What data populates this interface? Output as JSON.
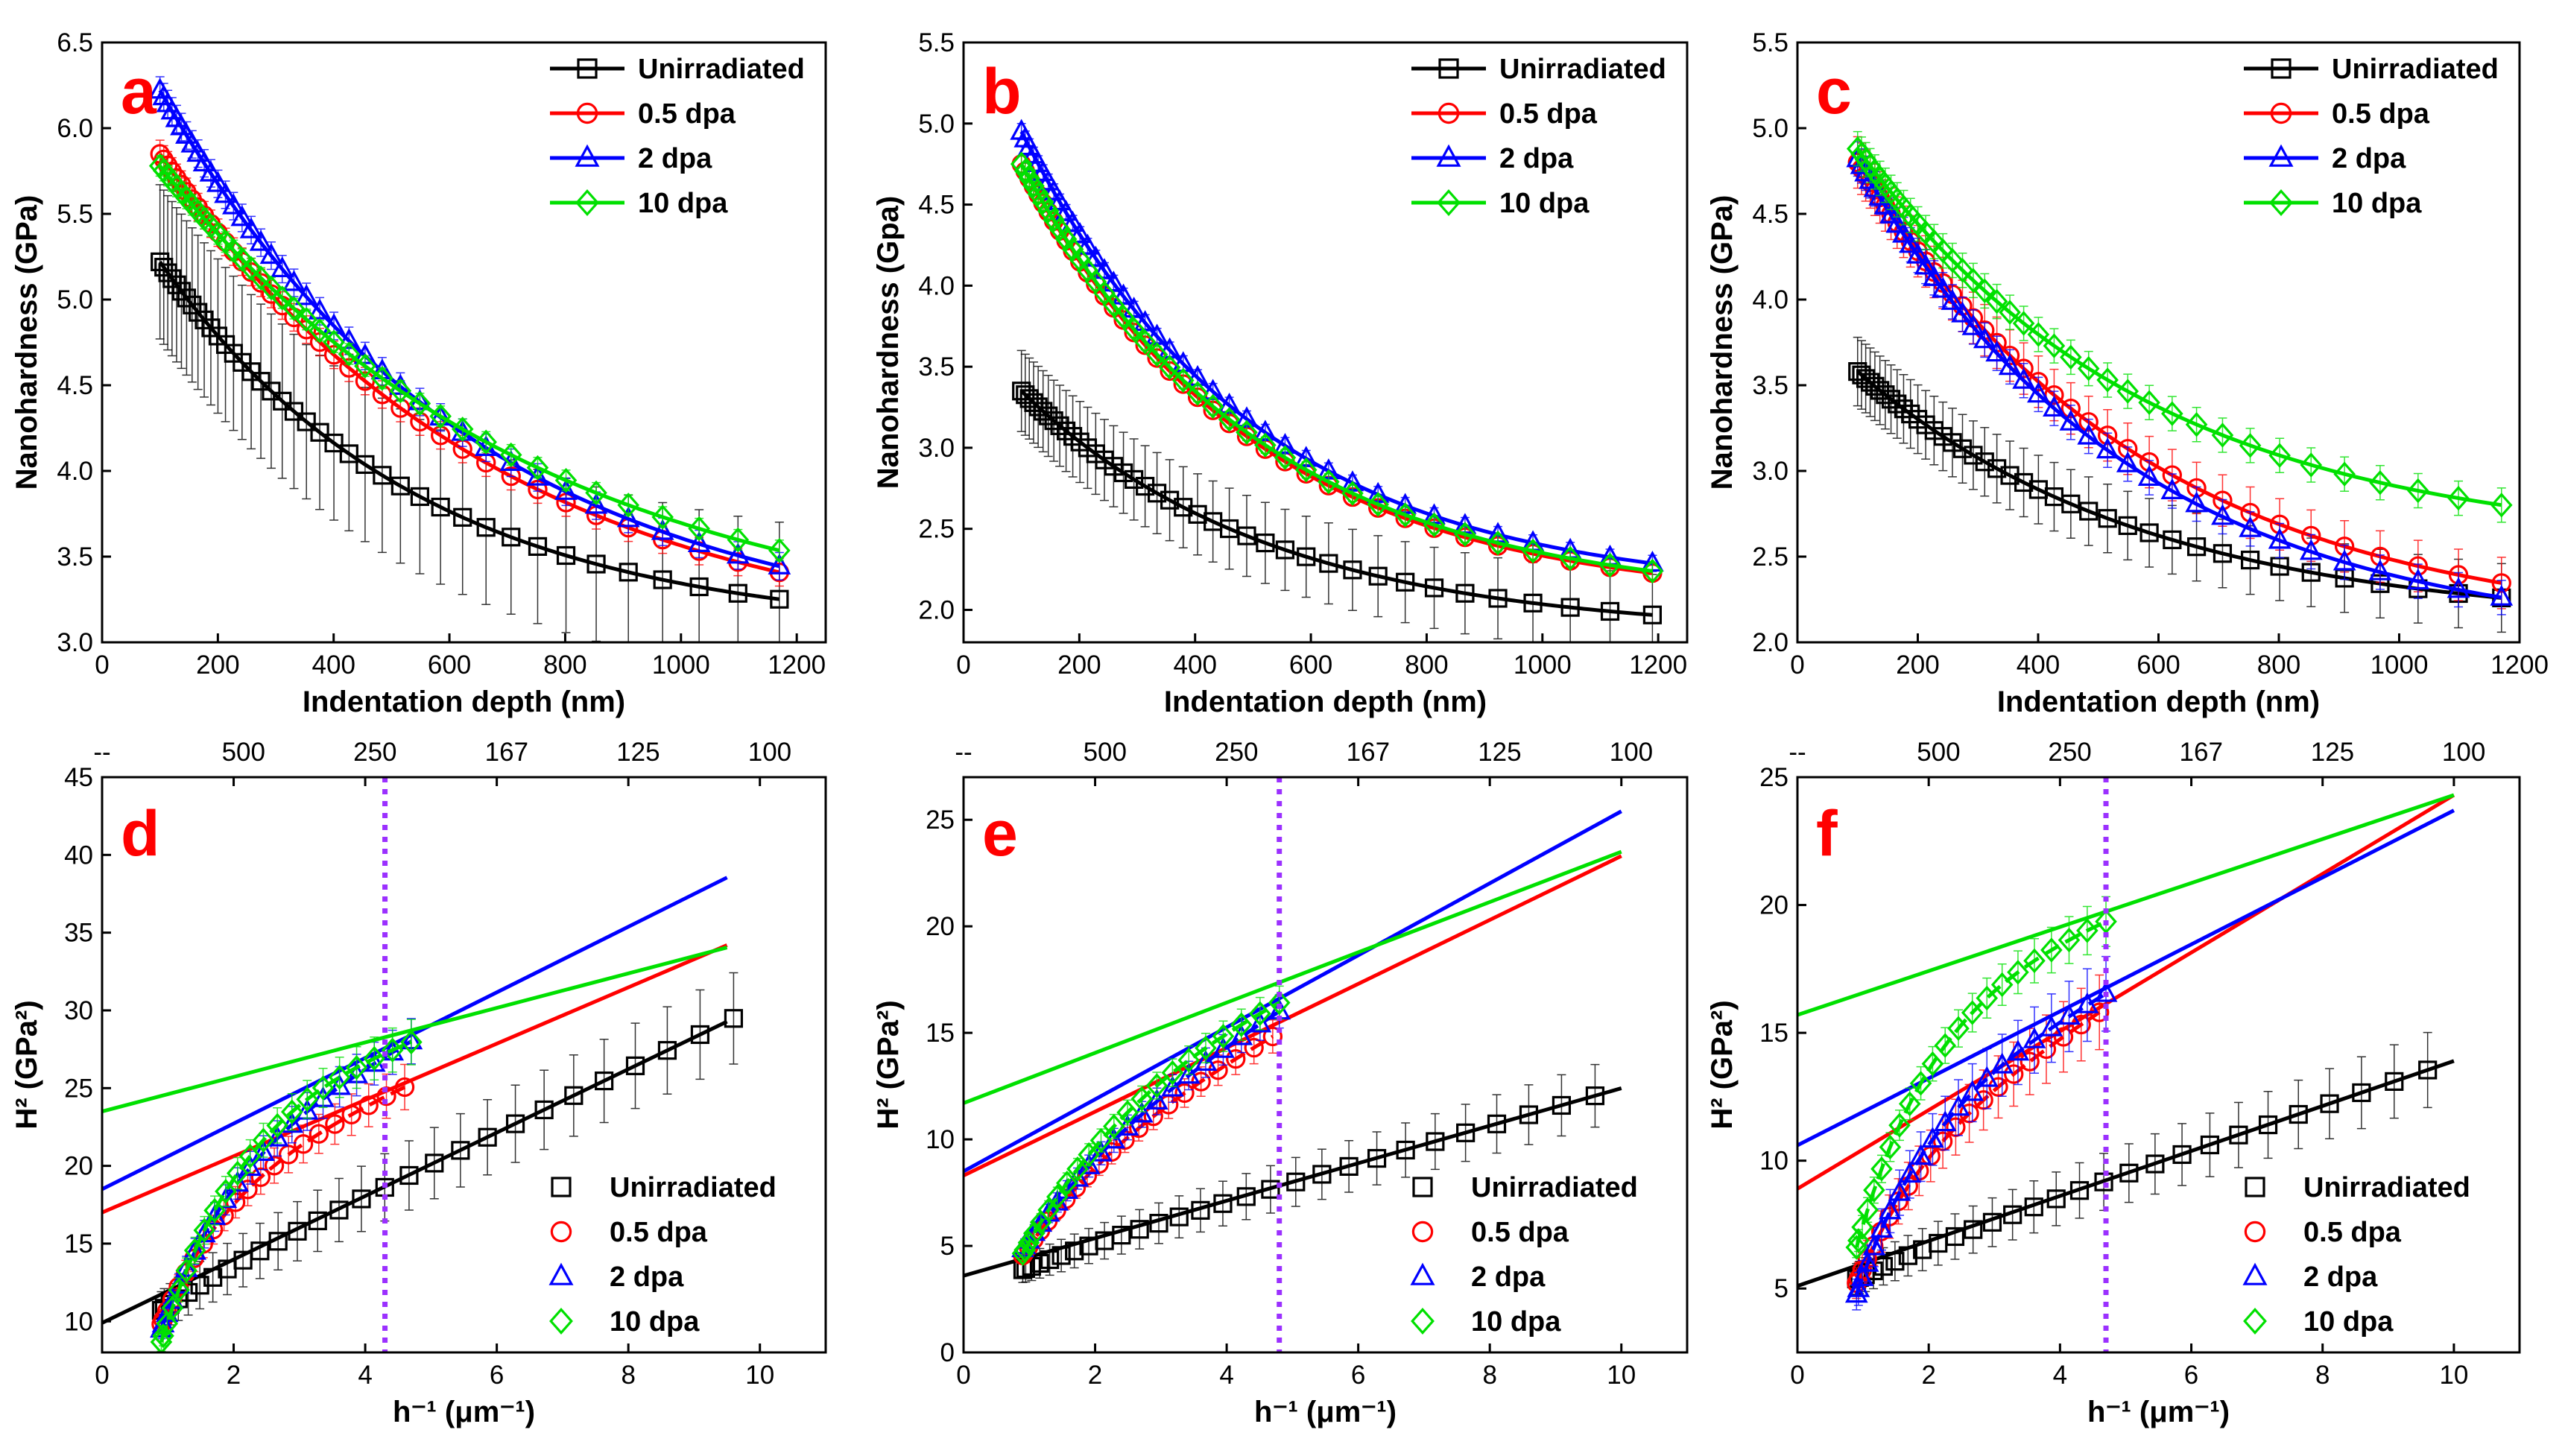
{
  "chart_data": [
    {
      "id": "a",
      "type": "line",
      "panel_label": "a",
      "xlabel": "Indentation depth (nm)",
      "ylabel": "Nanohardness (GPa)",
      "xlim": [
        0,
        1250
      ],
      "ylim": [
        3.0,
        6.5
      ],
      "xticks": [
        {
          "v": 0,
          "t": "0"
        },
        {
          "v": 200,
          "t": "200"
        },
        {
          "v": 400,
          "t": "400"
        },
        {
          "v": 600,
          "t": "600"
        },
        {
          "v": 800,
          "t": "800"
        },
        {
          "v": 1000,
          "t": "1000"
        },
        {
          "v": 1200,
          "t": "1200"
        }
      ],
      "yticks": [
        {
          "v": 3.0,
          "t": "3.0"
        },
        {
          "v": 3.5,
          "t": "3.5"
        },
        {
          "v": 4.0,
          "t": "4.0"
        },
        {
          "v": 4.5,
          "t": "4.5"
        },
        {
          "v": 5.0,
          "t": "5.0"
        },
        {
          "v": 5.5,
          "t": "5.5"
        },
        {
          "v": 6.0,
          "t": "6.0"
        },
        {
          "v": 6.5,
          "t": "6.5"
        }
      ],
      "legend": "top-right",
      "series": [
        {
          "name": "Unirradiated",
          "color": "#000000",
          "marker": "square",
          "h0": 5.22,
          "hinf": 3.05,
          "hs": 450,
          "d0": 100,
          "d1": 1170,
          "err": 0.45
        },
        {
          "name": "0.5 dpa",
          "color": "#ff0000",
          "marker": "circle",
          "h0": 5.85,
          "hinf": 2.95,
          "hs": 580,
          "d0": 100,
          "d1": 1170,
          "err": 0.08
        },
        {
          "name": "2 dpa",
          "color": "#0000ff",
          "marker": "triangle",
          "h0": 6.22,
          "hinf": 3.0,
          "hs": 540,
          "d0": 100,
          "d1": 1170,
          "err": 0.08
        },
        {
          "name": "10 dpa",
          "color": "#00e000",
          "marker": "diamond",
          "h0": 5.78,
          "hinf": 3.0,
          "hs": 650,
          "d0": 100,
          "d1": 1170,
          "err": 0.06
        }
      ]
    },
    {
      "id": "b",
      "type": "line",
      "panel_label": "b",
      "xlabel": "Indentation depth (nm)",
      "ylabel": "Nanohardness (Gpa)",
      "xlim": [
        0,
        1250
      ],
      "ylim": [
        1.8,
        5.5
      ],
      "xticks": [
        {
          "v": 0,
          "t": "0"
        },
        {
          "v": 200,
          "t": "200"
        },
        {
          "v": 400,
          "t": "400"
        },
        {
          "v": 600,
          "t": "600"
        },
        {
          "v": 800,
          "t": "800"
        },
        {
          "v": 1000,
          "t": "1000"
        },
        {
          "v": 1200,
          "t": "1200"
        }
      ],
      "yticks": [
        {
          "v": 2.0,
          "t": "2.0"
        },
        {
          "v": 2.5,
          "t": "2.5"
        },
        {
          "v": 3.0,
          "t": "3.0"
        },
        {
          "v": 3.5,
          "t": "3.5"
        },
        {
          "v": 4.0,
          "t": "4.0"
        },
        {
          "v": 4.5,
          "t": "4.5"
        },
        {
          "v": 5.0,
          "t": "5.0"
        },
        {
          "v": 5.5,
          "t": "5.5"
        }
      ],
      "legend": "top-right",
      "series": [
        {
          "name": "Unirradiated",
          "color": "#000000",
          "marker": "square",
          "h0": 3.35,
          "hinf": 1.85,
          "hs": 430,
          "d0": 100,
          "d1": 1190,
          "err": 0.25
        },
        {
          "name": "0.5 dpa",
          "color": "#ff0000",
          "marker": "circle",
          "h0": 4.75,
          "hinf": 2.05,
          "hs": 400,
          "d0": 100,
          "d1": 1190,
          "err": 0.05
        },
        {
          "name": "2 dpa",
          "color": "#0000ff",
          "marker": "triangle",
          "h0": 4.95,
          "hinf": 2.1,
          "hs": 400,
          "d0": 100,
          "d1": 1190,
          "err": 0.05
        },
        {
          "name": "10 dpa",
          "color": "#00e000",
          "marker": "diamond",
          "h0": 4.75,
          "hinf": 2.05,
          "hs": 410,
          "d0": 100,
          "d1": 1190,
          "err": 0.05
        }
      ]
    },
    {
      "id": "c",
      "type": "line",
      "panel_label": "c",
      "xlabel": "Indentation depth (nm)",
      "ylabel": "Nanohardness (GPa)",
      "xlim": [
        0,
        1200
      ],
      "ylim": [
        2.0,
        5.5
      ],
      "xticks": [
        {
          "v": 0,
          "t": "0"
        },
        {
          "v": 200,
          "t": "200"
        },
        {
          "v": 400,
          "t": "400"
        },
        {
          "v": 600,
          "t": "600"
        },
        {
          "v": 800,
          "t": "800"
        },
        {
          "v": 1000,
          "t": "1000"
        },
        {
          "v": 1200,
          "t": "1200"
        }
      ],
      "yticks": [
        {
          "v": 2.0,
          "t": "2.0"
        },
        {
          "v": 2.5,
          "t": "2.5"
        },
        {
          "v": 3.0,
          "t": "3.0"
        },
        {
          "v": 3.5,
          "t": "3.5"
        },
        {
          "v": 4.0,
          "t": "4.0"
        },
        {
          "v": 4.5,
          "t": "4.5"
        },
        {
          "v": 5.0,
          "t": "5.0"
        },
        {
          "v": 5.5,
          "t": "5.5"
        }
      ],
      "legend": "top-right",
      "series": [
        {
          "name": "Unirradiated",
          "color": "#000000",
          "marker": "square",
          "h0": 3.58,
          "hinf": 2.1,
          "hs": 480,
          "d0": 100,
          "d1": 1170,
          "err": 0.2
        },
        {
          "name": "0.5 dpa",
          "color": "#ff0000",
          "marker": "circle",
          "h0": 4.8,
          "hinf": 2.05,
          "hs": 480,
          "d0": 100,
          "d1": 1170,
          "err": 0.15
        },
        {
          "name": "2 dpa",
          "color": "#0000ff",
          "marker": "triangle",
          "h0": 4.82,
          "hinf": 2.0,
          "hs": 450,
          "d0": 100,
          "d1": 1170,
          "err": 0.1
        },
        {
          "name": "10 dpa",
          "color": "#00e000",
          "marker": "diamond",
          "h0": 4.88,
          "hinf": 2.55,
          "hs": 480,
          "d0": 100,
          "d1": 1170,
          "err": 0.1
        }
      ]
    },
    {
      "id": "d",
      "type": "scatter",
      "panel_label": "d",
      "xlabel": "h⁻¹ (μm⁻¹)",
      "ylabel": "H² (GPa²)",
      "xlim": [
        0,
        11
      ],
      "ylim": [
        8,
        45
      ],
      "vline": 4.3,
      "xticks": [
        {
          "v": 0,
          "t": "0"
        },
        {
          "v": 2,
          "t": "2"
        },
        {
          "v": 4,
          "t": "4"
        },
        {
          "v": 6,
          "t": "6"
        },
        {
          "v": 8,
          "t": "8"
        },
        {
          "v": 10,
          "t": "10"
        }
      ],
      "yticks": [
        {
          "v": 10,
          "t": "10"
        },
        {
          "v": 15,
          "t": "15"
        },
        {
          "v": 20,
          "t": "20"
        },
        {
          "v": 25,
          "t": "25"
        },
        {
          "v": 30,
          "t": "30"
        },
        {
          "v": 35,
          "t": "35"
        },
        {
          "v": 40,
          "t": "40"
        },
        {
          "v": 45,
          "t": "45"
        }
      ],
      "top_ticks": [
        {
          "v": 2,
          "t": "500"
        },
        {
          "v": 4,
          "t": "250"
        },
        {
          "v": 6,
          "t": "167"
        },
        {
          "v": 8,
          "t": "125"
        },
        {
          "v": 10,
          "t": "100"
        }
      ],
      "top_left_label": "--",
      "legend": "bottom-right",
      "series": [
        {
          "name": "Unirradiated",
          "color": "#000000",
          "marker": "square",
          "intercept": 9.9,
          "slope": 2.04,
          "fitx1": 9.5,
          "a0": 11.0,
          "k": 0.9,
          "lx": [
            1,
            9.6
          ],
          "err": 3.0
        },
        {
          "name": "0.5 dpa",
          "color": "#ff0000",
          "marker": "circle",
          "intercept": 17.0,
          "slope": 1.81,
          "fitx1": 9.5,
          "a0": 10.8,
          "k": 0.95,
          "lx": [
            1,
            4.6
          ],
          "err": 1.5
        },
        {
          "name": "2 dpa",
          "color": "#0000ff",
          "marker": "triangle",
          "intercept": 18.5,
          "slope": 2.11,
          "fitx1": 9.5,
          "a0": 10.6,
          "k": 0.87,
          "lx": [
            1,
            4.7
          ],
          "err": 1.5
        },
        {
          "name": "10 dpa",
          "color": "#00e000",
          "marker": "diamond",
          "intercept": 23.5,
          "slope": 1.11,
          "fitx1": 9.5,
          "a0": 10.0,
          "k": 0.8,
          "lx": [
            1,
            4.7
          ],
          "err": 1.5
        }
      ]
    },
    {
      "id": "e",
      "type": "scatter",
      "panel_label": "e",
      "xlabel": "h⁻¹ (μm⁻¹)",
      "ylabel": "H² (GPa²)",
      "xlim": [
        0,
        11
      ],
      "ylim": [
        0,
        27
      ],
      "vline": 4.8,
      "xticks": [
        {
          "v": 0,
          "t": "0"
        },
        {
          "v": 2,
          "t": "2"
        },
        {
          "v": 4,
          "t": "4"
        },
        {
          "v": 6,
          "t": "6"
        },
        {
          "v": 8,
          "t": "8"
        },
        {
          "v": 10,
          "t": "10"
        }
      ],
      "yticks": [
        {
          "v": 0,
          "t": "0"
        },
        {
          "v": 5,
          "t": "5"
        },
        {
          "v": 10,
          "t": "10"
        },
        {
          "v": 15,
          "t": "15"
        },
        {
          "v": 20,
          "t": "20"
        },
        {
          "v": 25,
          "t": "25"
        }
      ],
      "top_ticks": [
        {
          "v": 2,
          "t": "500"
        },
        {
          "v": 4,
          "t": "250"
        },
        {
          "v": 6,
          "t": "167"
        },
        {
          "v": 8,
          "t": "125"
        },
        {
          "v": 10,
          "t": "100"
        }
      ],
      "top_left_label": "--",
      "legend": "bottom-right",
      "series": [
        {
          "name": "Unirradiated",
          "color": "#000000",
          "marker": "square",
          "intercept": 3.6,
          "slope": 0.88,
          "fitx1": 10,
          "a0": 4.0,
          "k": 0.6,
          "lx": [
            1,
            9.6
          ],
          "err": 1.5
        },
        {
          "name": "0.5 dpa",
          "color": "#ff0000",
          "marker": "circle",
          "intercept": 8.3,
          "slope": 1.5,
          "fitx1": 10,
          "a0": 5.0,
          "k": 0.6,
          "lx": [
            1,
            4.7
          ],
          "err": 0.8
        },
        {
          "name": "2 dpa",
          "color": "#0000ff",
          "marker": "triangle",
          "intercept": 8.5,
          "slope": 1.69,
          "fitx1": 10,
          "a0": 5.3,
          "k": 0.55,
          "lx": [
            1,
            4.8
          ],
          "err": 0.8
        },
        {
          "name": "10 dpa",
          "color": "#00e000",
          "marker": "diamond",
          "intercept": 11.7,
          "slope": 1.18,
          "fitx1": 10,
          "a0": 5.2,
          "k": 0.55,
          "lx": [
            1,
            4.8
          ],
          "err": 0.8
        }
      ]
    },
    {
      "id": "f",
      "type": "scatter",
      "panel_label": "f",
      "xlabel": "h⁻¹ (μm⁻¹)",
      "ylabel": "H² (GPa²)",
      "xlim": [
        0,
        11
      ],
      "ylim": [
        2.5,
        25
      ],
      "vline": 4.7,
      "xticks": [
        {
          "v": 0,
          "t": "0"
        },
        {
          "v": 2,
          "t": "2"
        },
        {
          "v": 4,
          "t": "4"
        },
        {
          "v": 6,
          "t": "6"
        },
        {
          "v": 8,
          "t": "8"
        },
        {
          "v": 10,
          "t": "10"
        }
      ],
      "yticks": [
        {
          "v": 5,
          "t": "5"
        },
        {
          "v": 10,
          "t": "10"
        },
        {
          "v": 15,
          "t": "15"
        },
        {
          "v": 20,
          "t": "20"
        },
        {
          "v": 25,
          "t": "25"
        }
      ],
      "top_ticks": [
        {
          "v": 2,
          "t": "500"
        },
        {
          "v": 4,
          "t": "250"
        },
        {
          "v": 6,
          "t": "167"
        },
        {
          "v": 8,
          "t": "125"
        },
        {
          "v": 10,
          "t": "100"
        }
      ],
      "top_left_label": "--",
      "legend": "bottom-right",
      "series": [
        {
          "name": "Unirradiated",
          "color": "#000000",
          "marker": "square",
          "intercept": 5.1,
          "slope": 0.88,
          "fitx1": 10,
          "a0": 5.5,
          "k": 0.7,
          "lx": [
            1,
            9.6
          ],
          "err": 1.5
        },
        {
          "name": "0.5 dpa",
          "color": "#ff0000",
          "marker": "circle",
          "intercept": 8.9,
          "slope": 1.54,
          "fitx1": 10,
          "a0": 5.8,
          "k": 0.9,
          "lx": [
            1,
            4.6
          ],
          "err": 1.5
        },
        {
          "name": "2 dpa",
          "color": "#0000ff",
          "marker": "triangle",
          "intercept": 10.6,
          "slope": 1.31,
          "fitx1": 10,
          "a0": 5.5,
          "k": 0.9,
          "lx": [
            1,
            4.7
          ],
          "err": 1.5
        },
        {
          "name": "10 dpa",
          "color": "#00e000",
          "marker": "diamond",
          "intercept": 15.7,
          "slope": 0.86,
          "fitx1": 10,
          "a0": 7.5,
          "k": 0.85,
          "lx": [
            1,
            4.7
          ],
          "err": 1.0
        }
      ]
    }
  ]
}
